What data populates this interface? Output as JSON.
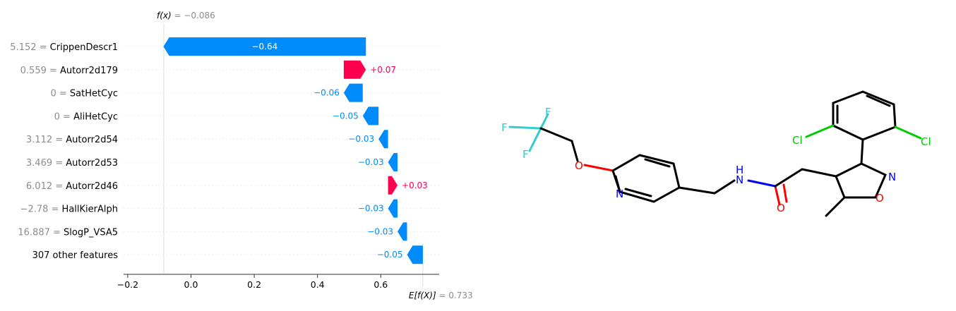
{
  "chart_data": {
    "type": "waterfall",
    "fx_label": "f(x)",
    "fx_value": "= −0.086",
    "fx": -0.086,
    "base_label": "E[f(X)]",
    "base_value": "= 0.733",
    "base": 0.733,
    "xlim": [
      -0.22,
      0.81
    ],
    "xticks": [
      -0.2,
      0.0,
      0.2,
      0.4,
      0.6
    ],
    "xtick_labels": [
      "−0.2",
      "0.0",
      "0.2",
      "0.4",
      "0.6"
    ],
    "positive_color": "#ff0051",
    "negative_color": "#008bfb",
    "features": [
      {
        "value": "5.152",
        "name": "CrippenDescr1",
        "shap": -0.64,
        "label": "−0.64"
      },
      {
        "value": "0.559",
        "name": "Autorr2d179",
        "shap": 0.07,
        "label": "+0.07"
      },
      {
        "value": "0",
        "name": "SatHetCyc",
        "shap": -0.06,
        "label": "−0.06"
      },
      {
        "value": "0",
        "name": "AliHetCyc",
        "shap": -0.05,
        "label": "−0.05"
      },
      {
        "value": "3.112",
        "name": "Autorr2d54",
        "shap": -0.03,
        "label": "−0.03"
      },
      {
        "value": "3.469",
        "name": "Autorr2d53",
        "shap": -0.03,
        "label": "−0.03"
      },
      {
        "value": "6.012",
        "name": "Autorr2d46",
        "shap": 0.03,
        "label": "+0.03"
      },
      {
        "value": "−2.78",
        "name": "HallKierAlph",
        "shap": -0.03,
        "label": "−0.03"
      },
      {
        "value": "16.887",
        "name": "SlogP_VSA5",
        "shap": -0.03,
        "label": "−0.03"
      },
      {
        "value": "",
        "name": "307 other features",
        "shap": -0.05,
        "label": "−0.05"
      }
    ]
  },
  "molecule": {
    "atom_labels": {
      "F": "F",
      "O": "O",
      "N": "N",
      "NH": "H",
      "Cl": "Cl"
    }
  }
}
